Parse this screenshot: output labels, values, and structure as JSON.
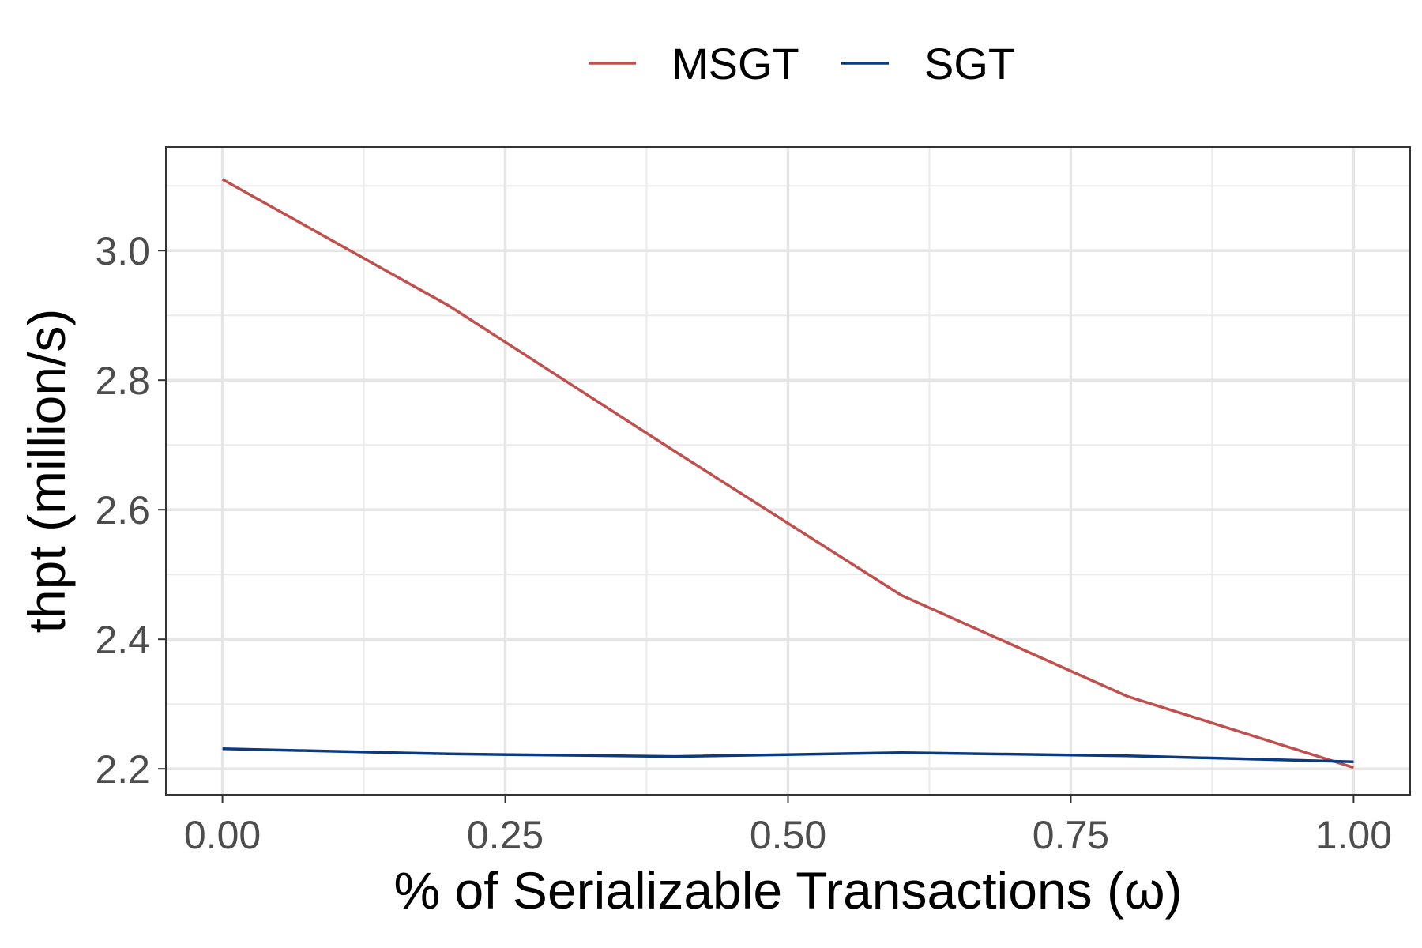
{
  "chart_data": {
    "type": "line",
    "title": "",
    "xlabel": "% of Serializable Transactions (ω)",
    "ylabel": "thpt (million/s)",
    "x": [
      0.0,
      0.2,
      0.4,
      0.6,
      0.8,
      1.0
    ],
    "series": [
      {
        "name": "MSGT",
        "color": "#c0504d",
        "values": [
          3.11,
          2.915,
          2.69,
          2.468,
          2.312,
          2.202
        ]
      },
      {
        "name": "SGT",
        "color": "#0b3a82",
        "values": [
          2.231,
          2.223,
          2.219,
          2.225,
          2.22,
          2.211
        ]
      }
    ],
    "xlim": [
      -0.05,
      1.05
    ],
    "ylim": [
      2.16,
      3.16
    ],
    "x_ticks": [
      0.0,
      0.25,
      0.5,
      0.75,
      1.0
    ],
    "x_tick_labels": [
      "0.00",
      "0.25",
      "0.50",
      "0.75",
      "1.00"
    ],
    "y_ticks": [
      2.2,
      2.4,
      2.6,
      2.8,
      3.0
    ],
    "y_tick_labels": [
      "2.2",
      "2.4",
      "2.6",
      "2.8",
      "3.0"
    ],
    "grid": true,
    "legend_position": "top"
  }
}
